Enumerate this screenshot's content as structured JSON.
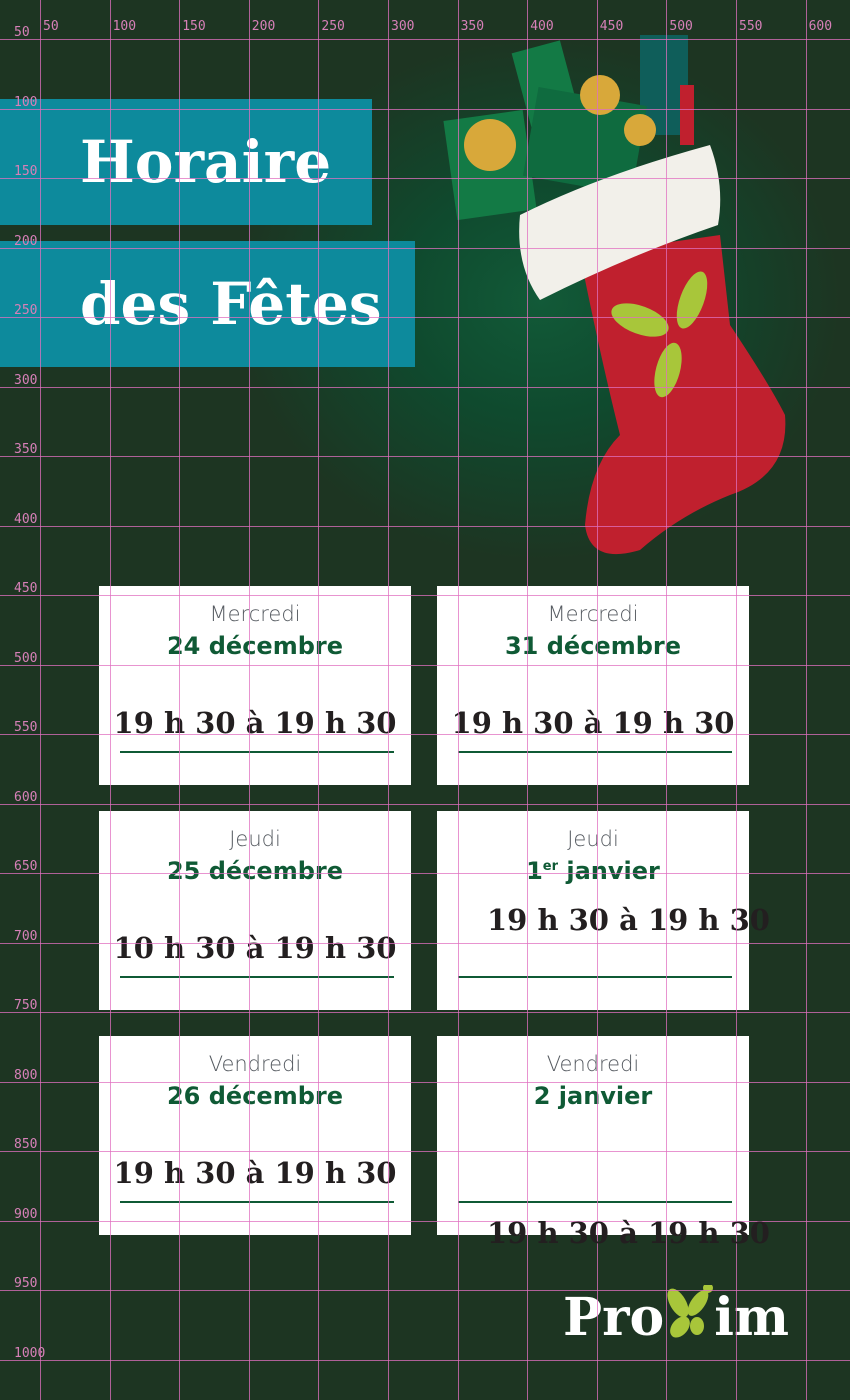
{
  "title": {
    "line1": "Horaire",
    "line2": "des Fêtes"
  },
  "cards": [
    {
      "day": "Mercredi",
      "date": "24 décembre",
      "date_sup": "",
      "time": "19 h 30 à 19 h 30"
    },
    {
      "day": "Mercredi",
      "date": "31 décembre",
      "date_sup": "",
      "time": "19 h 30 à 19 h 30"
    },
    {
      "day": "Jeudi",
      "date": "25 décembre",
      "date_sup": "",
      "time": "10 h 30 à 19 h 30"
    },
    {
      "day": "Jeudi",
      "date": "1",
      "date_sup": "er",
      "date_rest": " janvier",
      "time": "19 h 30 à 19 h 30"
    },
    {
      "day": "Vendredi",
      "date": "26 décembre",
      "date_sup": "",
      "time": "19 h 30 à 19 h 30"
    },
    {
      "day": "Vendredi",
      "date": "2 janvier",
      "date_sup": "",
      "time": "19 h 30 à 19 h 30"
    }
  ],
  "logo": {
    "text": "Proxim",
    "accent": "#a8c63a"
  },
  "grid": {
    "x_labels": [
      "50",
      "100",
      "150",
      "200",
      "250",
      "300",
      "350",
      "400",
      "450",
      "500",
      "550",
      "600"
    ],
    "y_labels": [
      "50",
      "100",
      "150",
      "200",
      "250",
      "300",
      "350",
      "400",
      "450",
      "500",
      "550",
      "600",
      "650",
      "700",
      "750",
      "800",
      "850",
      "900",
      "950",
      "1000"
    ],
    "color": "#e070c0"
  },
  "colors": {
    "background": "#1d3522",
    "banner": "#0d8a9c",
    "date": "#0f5a35",
    "stocking": "#c0202e"
  }
}
